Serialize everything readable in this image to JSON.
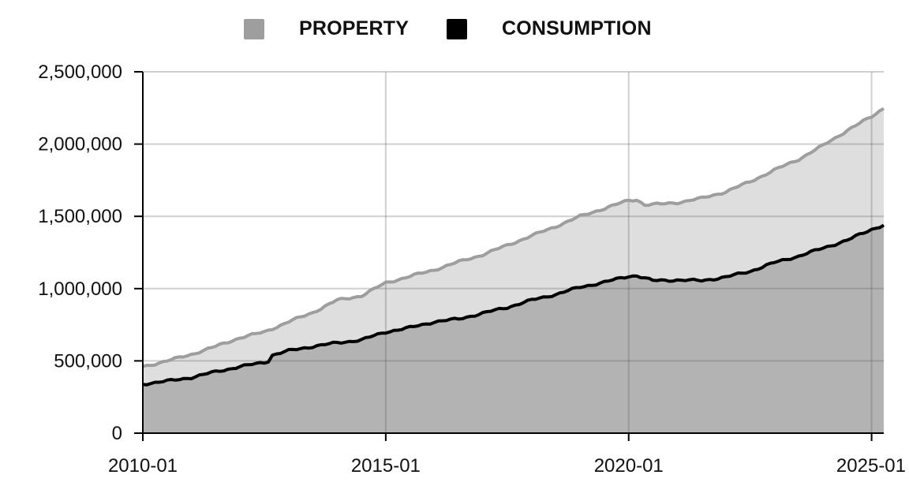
{
  "chart_data": {
    "type": "area",
    "title": "",
    "xlabel": "",
    "ylabel": "",
    "x_ticks": [
      "2010-01",
      "2015-01",
      "2020-01",
      "2025-01"
    ],
    "y_ticks": [
      "0",
      "500,000",
      "1,000,000",
      "1,500,000",
      "2,000,000",
      "2,500,000"
    ],
    "ylim": [
      0,
      2500000
    ],
    "xlim": [
      "2010-01",
      "2025-04"
    ],
    "grid": true,
    "legend": {
      "placement": "top-center"
    },
    "series": [
      {
        "name": "PROPERTY",
        "color": "#9e9e9e",
        "fill": "#dedede",
        "points": [
          [
            "2010-01",
            460000
          ],
          [
            "2010-07",
            500000
          ],
          [
            "2011-01",
            545000
          ],
          [
            "2011-07",
            600000
          ],
          [
            "2012-01",
            660000
          ],
          [
            "2012-07",
            700000
          ],
          [
            "2013-01",
            770000
          ],
          [
            "2013-07",
            835000
          ],
          [
            "2014-01",
            920000
          ],
          [
            "2014-07",
            950000
          ],
          [
            "2015-01",
            1040000
          ],
          [
            "2015-07",
            1085000
          ],
          [
            "2016-01",
            1130000
          ],
          [
            "2016-07",
            1185000
          ],
          [
            "2017-01",
            1235000
          ],
          [
            "2017-07",
            1300000
          ],
          [
            "2018-01",
            1365000
          ],
          [
            "2018-07",
            1430000
          ],
          [
            "2019-01",
            1500000
          ],
          [
            "2019-07",
            1555000
          ],
          [
            "2020-01",
            1610000
          ],
          [
            "2020-03",
            1615000
          ],
          [
            "2020-05",
            1580000
          ],
          [
            "2020-09",
            1585000
          ],
          [
            "2021-01",
            1595000
          ],
          [
            "2021-07",
            1625000
          ],
          [
            "2022-01",
            1670000
          ],
          [
            "2022-07",
            1740000
          ],
          [
            "2023-01",
            1820000
          ],
          [
            "2023-07",
            1895000
          ],
          [
            "2024-01",
            1990000
          ],
          [
            "2024-07",
            2095000
          ],
          [
            "2025-01",
            2190000
          ],
          [
            "2025-04",
            2250000
          ]
        ]
      },
      {
        "name": "CONSUMPTION",
        "color": "#000000",
        "fill": "#b3b3b3",
        "points": [
          [
            "2010-01",
            340000
          ],
          [
            "2010-07",
            360000
          ],
          [
            "2011-01",
            385000
          ],
          [
            "2011-07",
            425000
          ],
          [
            "2012-01",
            460000
          ],
          [
            "2012-07",
            490000
          ],
          [
            "2012-08",
            500000
          ],
          [
            "2012-09",
            540000
          ],
          [
            "2013-01",
            570000
          ],
          [
            "2013-07",
            600000
          ],
          [
            "2014-01",
            625000
          ],
          [
            "2014-07",
            645000
          ],
          [
            "2015-01",
            700000
          ],
          [
            "2015-07",
            730000
          ],
          [
            "2016-01",
            770000
          ],
          [
            "2016-07",
            790000
          ],
          [
            "2017-01",
            830000
          ],
          [
            "2017-07",
            870000
          ],
          [
            "2018-01",
            920000
          ],
          [
            "2018-07",
            960000
          ],
          [
            "2019-01",
            1010000
          ],
          [
            "2019-07",
            1045000
          ],
          [
            "2020-01",
            1085000
          ],
          [
            "2020-03",
            1090000
          ],
          [
            "2020-07",
            1055000
          ],
          [
            "2021-01",
            1060000
          ],
          [
            "2021-07",
            1055000
          ],
          [
            "2022-01",
            1080000
          ],
          [
            "2022-07",
            1120000
          ],
          [
            "2023-01",
            1180000
          ],
          [
            "2023-07",
            1225000
          ],
          [
            "2024-01",
            1280000
          ],
          [
            "2024-07",
            1335000
          ],
          [
            "2025-01",
            1410000
          ],
          [
            "2025-04",
            1440000
          ]
        ]
      }
    ]
  }
}
